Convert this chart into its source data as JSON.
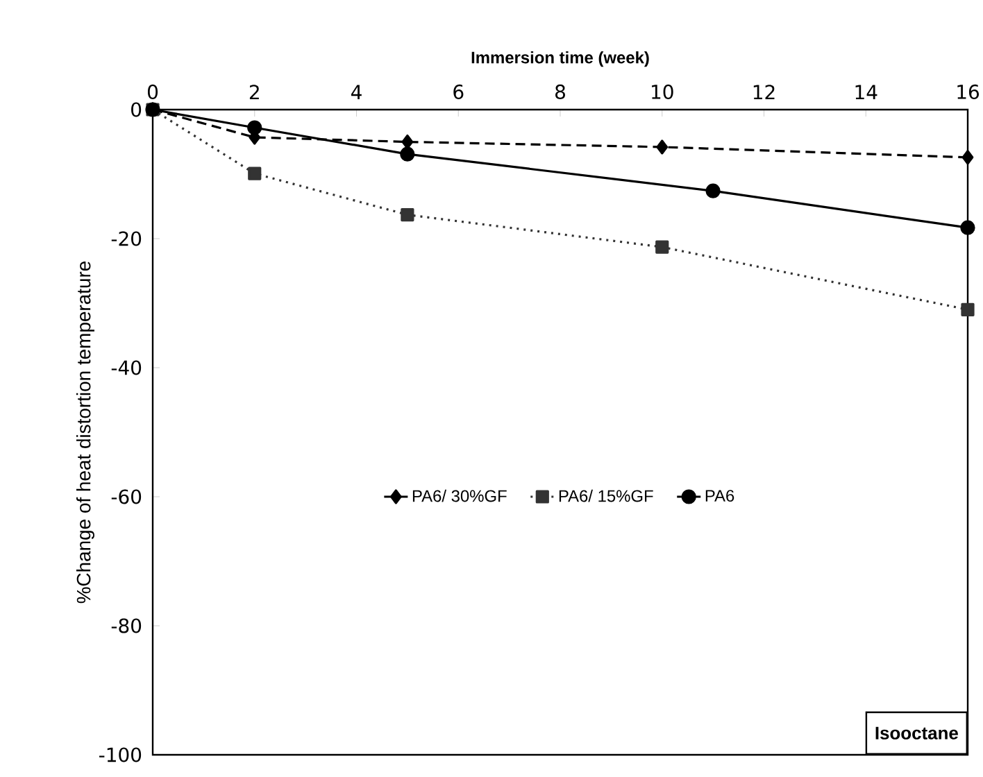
{
  "chart_data": {
    "type": "line",
    "xlabel": "Immersion time (week)",
    "ylabel": "%Change of heat distortion temperature",
    "xlim": [
      0,
      16
    ],
    "xticks": [
      0,
      2,
      4,
      6,
      8,
      10,
      12,
      14,
      16
    ],
    "ylim": [
      -100,
      0
    ],
    "yticks": [
      -100,
      -80,
      -60,
      -40,
      -20,
      0
    ],
    "grid": false,
    "legend": "center",
    "annotations": [
      "Isooctane"
    ],
    "series": [
      {
        "name": "PA6/ 30%GF",
        "color": "#000000",
        "marker": "diamond",
        "line_style": "dashed",
        "x": [
          0,
          2,
          5,
          10,
          16
        ],
        "values": [
          0,
          -4.3,
          -5.0,
          -5.8,
          -7.4
        ]
      },
      {
        "name": "PA6/ 15%GF",
        "color": "#333333",
        "marker": "square",
        "line_style": "dotted",
        "x": [
          0,
          2,
          5,
          10,
          16
        ],
        "values": [
          0,
          -9.9,
          -16.3,
          -21.3,
          -31.0
        ]
      },
      {
        "name": "PA6",
        "color": "#000000",
        "marker": "circle",
        "line_style": "solid",
        "x": [
          0,
          2,
          5,
          11,
          16
        ],
        "values": [
          0,
          -2.8,
          -6.9,
          -12.6,
          -18.3
        ]
      }
    ]
  }
}
